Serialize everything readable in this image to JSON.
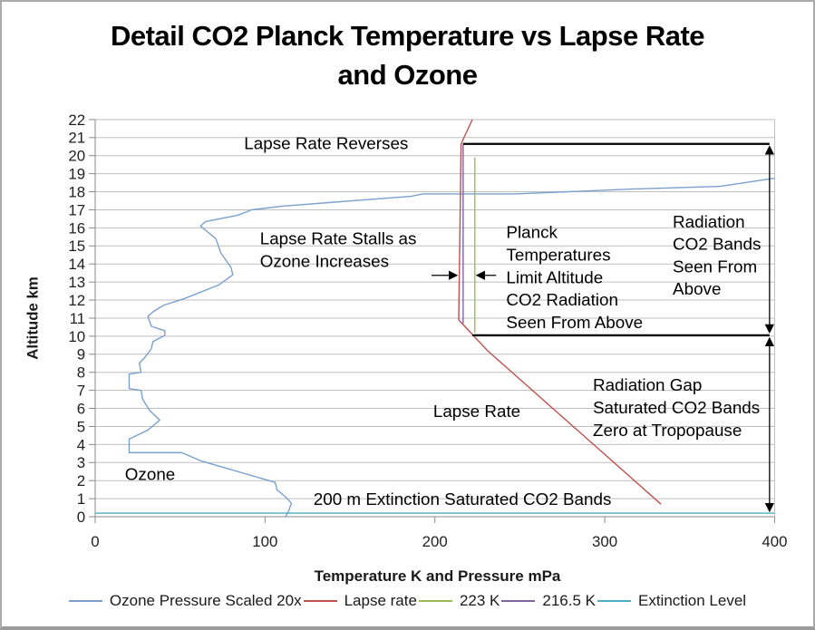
{
  "title": {
    "line1": "Detail CO2 Planck Temperature vs Lapse Rate",
    "line2": "and Ozone"
  },
  "chart_data": {
    "type": "line",
    "title": "Detail CO2 Planck Temperature vs Lapse Rate and Ozone",
    "xlabel": "Temperature K and Pressure mPa",
    "ylabel": "Altitude km",
    "xlim": [
      0,
      400
    ],
    "ylim": [
      0,
      22
    ],
    "x_ticks": [
      0,
      100,
      200,
      300,
      400
    ],
    "y_tick_step": 1,
    "grid": "horizontal",
    "legend_position": "bottom",
    "series": [
      {
        "name": "Ozone Pressure Scaled 20x",
        "color": "#7AA0CE",
        "points": [
          [
            112,
            0
          ],
          [
            114,
            0.35
          ],
          [
            115.5,
            0.75
          ],
          [
            112,
            1.1
          ],
          [
            107,
            1.5
          ],
          [
            106,
            1.9
          ],
          [
            62,
            3.1
          ],
          [
            51,
            3.55
          ],
          [
            20,
            3.55
          ],
          [
            20,
            4.3
          ],
          [
            31,
            4.8
          ],
          [
            38,
            5.35
          ],
          [
            32,
            5.9
          ],
          [
            28,
            6.5
          ],
          [
            27,
            7.0
          ],
          [
            20,
            7.1
          ],
          [
            20,
            7.9
          ],
          [
            27,
            8.0
          ],
          [
            26,
            8.5
          ],
          [
            29,
            8.8
          ],
          [
            33,
            9.3
          ],
          [
            34,
            9.7
          ],
          [
            41,
            10.05
          ],
          [
            41,
            10.3
          ],
          [
            33,
            10.55
          ],
          [
            31,
            11.1
          ],
          [
            34,
            11.35
          ],
          [
            40,
            11.7
          ],
          [
            53,
            12.1
          ],
          [
            73,
            12.85
          ],
          [
            81,
            13.4
          ],
          [
            80,
            13.8
          ],
          [
            74,
            14.6
          ],
          [
            71,
            15.4
          ],
          [
            62,
            16.1
          ],
          [
            65,
            16.35
          ],
          [
            84,
            16.7
          ],
          [
            92,
            17.0
          ],
          [
            110,
            17.2
          ],
          [
            186,
            17.75
          ],
          [
            193,
            17.88
          ],
          [
            247,
            17.88
          ],
          [
            316,
            18.15
          ],
          [
            368,
            18.3
          ],
          [
            400,
            18.75
          ]
        ]
      },
      {
        "name": "Lapse rate",
        "color": "#C0504D",
        "points": [
          [
            222,
            22
          ],
          [
            215.4,
            20.65
          ],
          [
            214,
            10.9
          ],
          [
            231,
            9.2
          ],
          [
            333,
            0.7
          ]
        ]
      },
      {
        "name": "223 K",
        "color": "#9BBB59",
        "points": [
          [
            223.5,
            10.2
          ],
          [
            223.5,
            19.9
          ]
        ]
      },
      {
        "name": "216.5 K",
        "color": "#8064A2",
        "points": [
          [
            216.6,
            10.7
          ],
          [
            216.6,
            20.6
          ]
        ]
      },
      {
        "name": "Extinction Level",
        "color": "#4BACC6",
        "points": [
          [
            0,
            0.2
          ],
          [
            400,
            0.2
          ]
        ]
      }
    ],
    "annotations": {
      "texts": [
        {
          "name": "lapse-rate-reverses",
          "lines": [
            "Lapse Rate Reverses"
          ],
          "x": 136,
          "y": 20.36,
          "align": "middle"
        },
        {
          "name": "lapse-rate-stalls",
          "lines": [
            "Lapse Rate Stalls as",
            "Ozone Increases"
          ],
          "x": 97,
          "y": 15.08,
          "align": "start"
        },
        {
          "name": "planck-temperatures",
          "lines": [
            "Planck",
            "Temperatures",
            "Limit Altitude",
            "CO2 Radiation",
            "Seen From Above"
          ],
          "x": 242,
          "y": 15.43,
          "align": "start"
        },
        {
          "name": "radiation-co2-bands",
          "lines": [
            "Radiation",
            "CO2 Bands",
            "Seen From",
            "Above"
          ],
          "x": 340,
          "y": 16.03,
          "align": "start"
        },
        {
          "name": "radiation-gap",
          "lines": [
            "Radiation Gap",
            "Saturated CO2 Bands",
            "Zero at Tropopause"
          ],
          "x": 293,
          "y": 6.97,
          "align": "start"
        },
        {
          "name": "lapse-rate-label",
          "lines": [
            "Lapse Rate"
          ],
          "x": 199,
          "y": 5.53,
          "align": "start"
        },
        {
          "name": "ozone-label",
          "lines": [
            "Ozone"
          ],
          "x": 17.5,
          "y": 2.04,
          "align": "start"
        },
        {
          "name": "extinction-label",
          "lines": [
            "200 m Extinction Saturated CO2 Bands"
          ],
          "x": 128.5,
          "y": 0.65,
          "align": "start"
        }
      ],
      "black_lines": [
        {
          "name": "co2-band-top-line",
          "x1": 216.5,
          "y1": 20.65,
          "x2": 397,
          "y2": 20.65
        },
        {
          "name": "co2-band-bottom-line",
          "x1": 222,
          "y1": 10.05,
          "x2": 397,
          "y2": 10.05
        }
      ],
      "arrows": [
        {
          "name": "radiation-band-span-arrow",
          "x1": 397,
          "y1": 20.5,
          "x2": 397,
          "y2": 10.22,
          "heads": "both"
        },
        {
          "name": "radiation-gap-span-arrow",
          "x1": 397,
          "y1": 9.88,
          "x2": 397,
          "y2": 0.32,
          "heads": "both"
        },
        {
          "name": "planck-pointer-right-arrow",
          "x1": 198,
          "y1": 13.37,
          "x2": 212.8,
          "y2": 13.37,
          "heads": "end"
        },
        {
          "name": "planck-pointer-left-arrow",
          "x1": 236,
          "y1": 13.37,
          "x2": 224.8,
          "y2": 13.37,
          "heads": "end"
        }
      ]
    }
  }
}
